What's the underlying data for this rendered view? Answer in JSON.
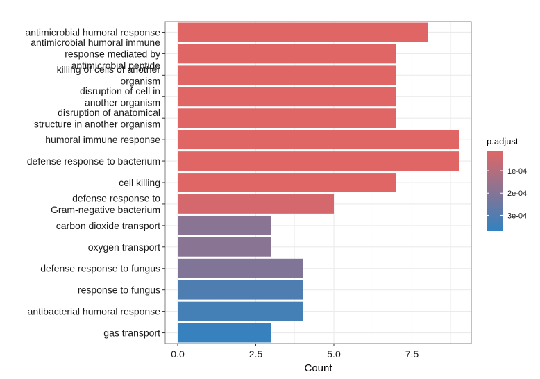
{
  "chart_data": {
    "type": "bar",
    "orientation": "horizontal",
    "categories": [
      [
        "antimicrobial humoral response"
      ],
      [
        "antimicrobial humoral immune",
        "response mediated by",
        "antimicrobial peptide"
      ],
      [
        "killing of cells of another",
        "organism"
      ],
      [
        "disruption of cell in",
        "another organism"
      ],
      [
        "disruption of anatomical",
        "structure in another organism"
      ],
      [
        "humoral immune response"
      ],
      [
        "defense response to bacterium"
      ],
      [
        "cell killing"
      ],
      [
        "defense response to",
        "Gram-negative bacterium"
      ],
      [
        "carbon dioxide transport"
      ],
      [
        "oxygen transport"
      ],
      [
        "defense response to fungus"
      ],
      [
        "response to fungus"
      ],
      [
        "antibacterial humoral response"
      ],
      [
        "gas transport"
      ]
    ],
    "values": [
      8,
      7,
      7,
      7,
      7,
      9,
      9,
      7,
      5,
      3,
      3,
      4,
      4,
      4,
      3
    ],
    "p_adjust": [
      1.05e-05,
      1.05e-05,
      1.05e-05,
      1.05e-05,
      1.05e-05,
      1.05e-05,
      1.05e-05,
      1.05e-05,
      3.5e-05,
      0.00019,
      0.00019,
      0.000205,
      0.00031,
      0.00033,
      0.00036
    ],
    "xlabel": "Count",
    "ylabel": "",
    "title": "",
    "xlim": [
      -0.4,
      9.4
    ],
    "xticks": [
      0,
      2.5,
      5,
      7.5
    ],
    "xtick_labels": [
      "0.0",
      "2.5",
      "5.0",
      "7.5"
    ],
    "grid": true,
    "legend": {
      "title": "p.adjust",
      "placement": "right",
      "range": [
        1e-05,
        0.00037
      ],
      "ticks": [
        0.0001,
        0.0002,
        0.0003
      ],
      "tick_labels": [
        "1e-04",
        "2e-04",
        "3e-04"
      ],
      "color_low": "#e06666",
      "color_high": "#3182c0"
    },
    "colors": {
      "panel_border": "#7f7f7f",
      "grid": "#ebebeb",
      "background": "#ffffff"
    }
  }
}
